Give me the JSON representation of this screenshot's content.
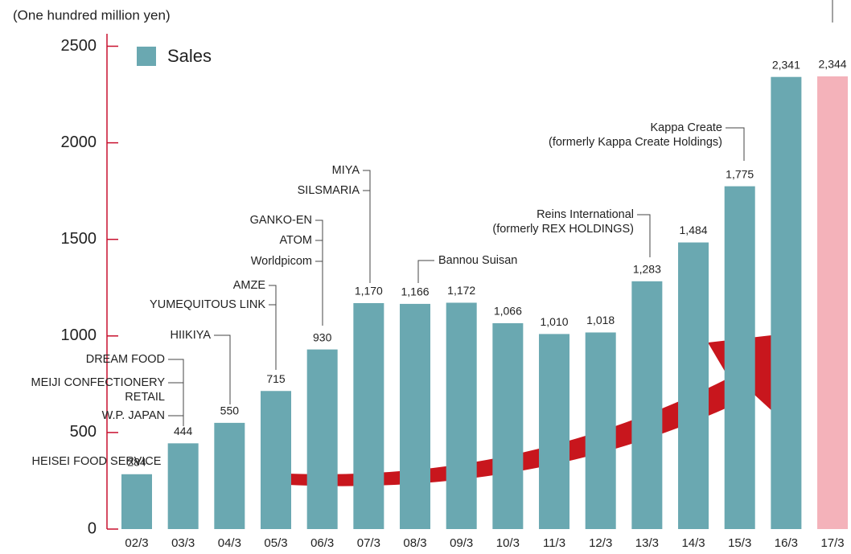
{
  "chart_data": {
    "type": "bar",
    "axis_label": "(One hundred million yen)",
    "categories": [
      "02/3",
      "03/3",
      "04/3",
      "05/3",
      "06/3",
      "07/3",
      "08/3",
      "09/3",
      "10/3",
      "11/3",
      "12/3",
      "13/3",
      "14/3",
      "15/3",
      "16/3",
      "17/3"
    ],
    "series": [
      {
        "name": "Sales",
        "color": "#6aa8b1",
        "values": [
          284,
          444,
          550,
          715,
          930,
          1170,
          1166,
          1172,
          1066,
          1010,
          1018,
          1283,
          1484,
          1775,
          2341,
          2344
        ],
        "value_labels": [
          "284",
          "444",
          "550",
          "715",
          "930",
          "1,170",
          "1,166",
          "1,172",
          "1,066",
          "1,010",
          "1,018",
          "1,283",
          "1,484",
          "1,775",
          "2,341",
          "2,344"
        ]
      }
    ],
    "bar_colors": [
      "#6aa8b1",
      "#6aa8b1",
      "#6aa8b1",
      "#6aa8b1",
      "#6aa8b1",
      "#6aa8b1",
      "#6aa8b1",
      "#6aa8b1",
      "#6aa8b1",
      "#6aa8b1",
      "#6aa8b1",
      "#6aa8b1",
      "#6aa8b1",
      "#6aa8b1",
      "#6aa8b1",
      "#f4b2ba"
    ],
    "ylim": [
      0,
      2500
    ],
    "yticks": [
      0,
      500,
      1000,
      1500,
      2000,
      2500
    ],
    "legend": "top-left",
    "annotations": [
      [
        "HEISEI FOOD SERVICE"
      ],
      [
        "W.P. JAPAN"
      ],
      [
        "MEIJI CONFECTIONERY",
        "RETAIL"
      ],
      [
        "DREAM FOOD"
      ],
      [
        "HIIKIYA"
      ],
      [
        "YUMEQUITOUS LINK"
      ],
      [
        "AMZE"
      ],
      [
        "Worldpicom"
      ],
      [
        "ATOM"
      ],
      [
        "GANKO-EN"
      ],
      [
        "SILSMARIA"
      ],
      [
        "MIYA"
      ],
      [
        "Bannou Suisan"
      ],
      [
        "Reins International",
        "(formerly REX HOLDINGS)"
      ],
      [
        "Kappa Create",
        "(formerly Kappa Create  Holdings)"
      ]
    ]
  }
}
